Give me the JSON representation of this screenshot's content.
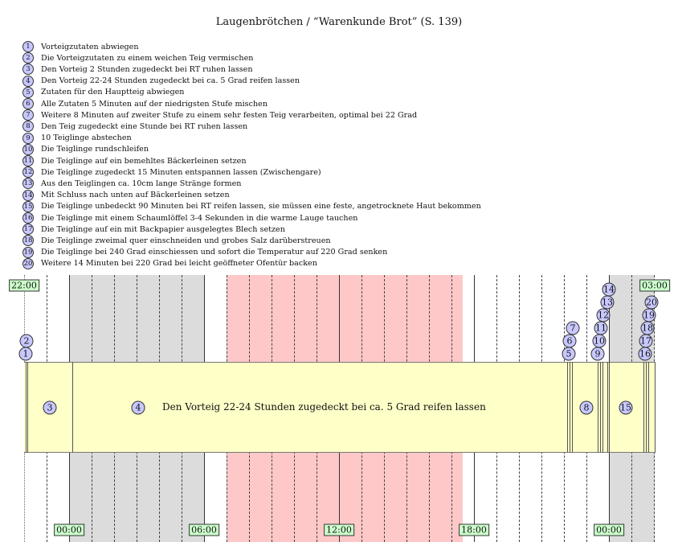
{
  "title": "Laugenbrötchen / “Warenkunde Brot” (S. 139)",
  "steps": [
    {
      "n": "1",
      "text": "Vorteigzutaten abwiegen"
    },
    {
      "n": "2",
      "text": "Die Vorteigzutaten zu einem weichen Teig vermischen"
    },
    {
      "n": "3",
      "text": "Den Vorteig 2 Stunden zugedeckt bei RT ruhen lassen"
    },
    {
      "n": "4",
      "text": "Den Vorteig 22-24 Stunden zugedeckt bei ca. 5 Grad reifen lassen"
    },
    {
      "n": "5",
      "text": "Zutaten für den Hauptteig abwiegen"
    },
    {
      "n": "6",
      "text": "Alle Zutaten 5 Minuten auf der niedrigsten Stufe mischen"
    },
    {
      "n": "7",
      "text": "Weitere 8 Minuten auf zweiter Stufe zu einem sehr festen Teig verarbeiten, optimal bei 22 Grad"
    },
    {
      "n": "8",
      "text": "Den Teig zugedeckt eine Stunde bei RT ruhen lassen"
    },
    {
      "n": "9",
      "text": "10 Teiglinge abstechen"
    },
    {
      "n": "10",
      "text": "Die Teiglinge rundschleifen"
    },
    {
      "n": "11",
      "text": "Die Teiglinge auf ein bemehltes Bäckerleinen setzen"
    },
    {
      "n": "12",
      "text": "Die Teiglinge zugedeckt 15 Minuten entspannen lassen (Zwischengare)"
    },
    {
      "n": "13",
      "text": "Aus den Teiglingen ca. 10cm lange Stränge formen"
    },
    {
      "n": "14",
      "text": "Mit Schluss nach unten auf Bäckerleinen setzen"
    },
    {
      "n": "15",
      "text": "Die Teiglinge unbedeckt 90 Minuten bei RT reifen lassen, sie müssen eine feste, angetrocknete Haut bekommen"
    },
    {
      "n": "16",
      "text": "Die Teiglinge mit einem Schaumlöffel 3-4 Sekunden in die warme Lauge tauchen"
    },
    {
      "n": "17",
      "text": "Die Teiglinge auf ein mit Backpapier ausgelegtes Blech setzen"
    },
    {
      "n": "18",
      "text": "Die Teiglinge zweimal quer einschneiden und grobes Salz darüberstreuen"
    },
    {
      "n": "19",
      "text": "Die Teiglinge bei 240 Grad einschiessen und sofort die Temperatur auf 220 Grad senken"
    },
    {
      "n": "20",
      "text": "Weitere 14 Minuten bei 220 Grad bei leicht geöffneter Ofentür backen"
    }
  ],
  "timeline": {
    "start_label": "22:00",
    "end_label": "03:00",
    "axis_labels": [
      "00:00",
      "06:00",
      "12:00",
      "18:00",
      "00:00"
    ],
    "long_step_text": "Den Vorteig 22-24 Stunden zugedeckt bei ca. 5 Grad reifen lassen",
    "colors": {
      "bar": "#ffffc8",
      "night": "#dcdcdc",
      "highlight": "#ffc8c8",
      "label_bg": "#ccffcc",
      "circle": "#c8c8ff"
    }
  }
}
